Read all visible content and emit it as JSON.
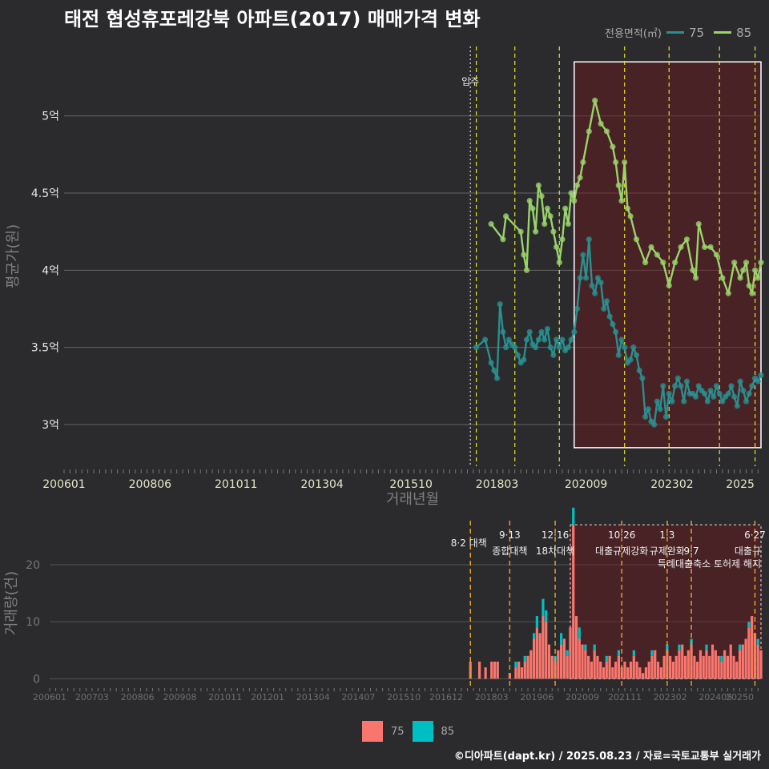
{
  "title": "태전 협성휴포레강북 아파트(2017) 매매가격 변화",
  "legend": {
    "title": "전용면적(㎡)",
    "items": [
      {
        "label": "75",
        "line_color": "#2a8f8f",
        "bar_color": "#f8766d"
      },
      {
        "label": "85",
        "line_color": "#9ad36a",
        "bar_color": "#00bfc4"
      }
    ]
  },
  "footer": "©디아파트(dapt.kr) / 2025.08.23 / 자료=국토교통부 실거래가",
  "chart_data": [
    {
      "type": "line",
      "xlabel": "거래년월",
      "ylabel": "평균가(원)",
      "x_range": [
        "2006-01",
        "2025-08"
      ],
      "ylim": [
        2.73,
        5.45
      ],
      "x_ticks": [
        "200601",
        "200806",
        "201011",
        "201304",
        "201510",
        "201803",
        "202009",
        "202302",
        "2025"
      ],
      "y_ticks": [
        {
          "value": 3.0,
          "label": "3억"
        },
        {
          "value": 3.5,
          "label": "3.5억"
        },
        {
          "value": 4.0,
          "label": "4억"
        },
        {
          "value": 4.5,
          "label": "4.5억"
        },
        {
          "value": 5.0,
          "label": "5억"
        }
      ],
      "annotation": {
        "label": "입주",
        "date": "2017-06"
      },
      "event_dates": [
        "2017-08",
        "2018-09",
        "2019-12",
        "2021-10",
        "2023-01",
        "2024-06",
        "2025-06"
      ],
      "highlight_box": {
        "x": [
          "2020-05",
          "2025-08"
        ],
        "y": [
          2.85,
          5.35
        ]
      },
      "series": [
        {
          "name": "75",
          "x": [
            "2017-08",
            "2017-11",
            "2018-01",
            "2018-02",
            "2018-03",
            "2018-04",
            "2018-05",
            "2018-06",
            "2018-07",
            "2018-08",
            "2018-09",
            "2018-10",
            "2018-11",
            "2018-12",
            "2019-01",
            "2019-02",
            "2019-03",
            "2019-04",
            "2019-05",
            "2019-06",
            "2019-07",
            "2019-08",
            "2019-09",
            "2019-10",
            "2019-11",
            "2019-12",
            "2020-01",
            "2020-02",
            "2020-03",
            "2020-04",
            "2020-05",
            "2020-06",
            "2020-07",
            "2020-08",
            "2020-09",
            "2020-10",
            "2020-11",
            "2020-12",
            "2021-01",
            "2021-02",
            "2021-03",
            "2021-04",
            "2021-05",
            "2021-06",
            "2021-07",
            "2021-08",
            "2021-09",
            "2021-10",
            "2021-11",
            "2021-12",
            "2022-01",
            "2022-02",
            "2022-03",
            "2022-04",
            "2022-05",
            "2022-06",
            "2022-07",
            "2022-08",
            "2022-09",
            "2022-10",
            "2022-11",
            "2022-12",
            "2023-01",
            "2023-02",
            "2023-03",
            "2023-04",
            "2023-05",
            "2023-06",
            "2023-07",
            "2023-08",
            "2023-09",
            "2023-10",
            "2023-11",
            "2023-12",
            "2024-01",
            "2024-02",
            "2024-03",
            "2024-04",
            "2024-05",
            "2024-06",
            "2024-07",
            "2024-08",
            "2024-09",
            "2024-10",
            "2024-11",
            "2024-12",
            "2025-01",
            "2025-02",
            "2025-03",
            "2025-04",
            "2025-05",
            "2025-06",
            "2025-07",
            "2025-08"
          ],
          "y": [
            3.5,
            3.55,
            3.4,
            3.35,
            3.3,
            3.78,
            3.6,
            3.5,
            3.55,
            3.52,
            3.5,
            3.45,
            3.4,
            3.42,
            3.55,
            3.6,
            3.52,
            3.5,
            3.55,
            3.6,
            3.55,
            3.62,
            3.5,
            3.45,
            3.55,
            3.5,
            3.55,
            3.48,
            3.5,
            3.55,
            3.6,
            3.75,
            3.95,
            4.1,
            3.95,
            4.2,
            3.9,
            3.85,
            3.95,
            3.92,
            3.75,
            3.8,
            3.7,
            3.65,
            3.6,
            3.45,
            3.55,
            3.5,
            3.4,
            3.42,
            3.5,
            3.45,
            3.35,
            3.3,
            3.05,
            3.1,
            3.02,
            3.0,
            3.15,
            3.1,
            3.25,
            3.05,
            3.2,
            3.15,
            3.25,
            3.3,
            3.25,
            3.15,
            3.28,
            3.2,
            3.2,
            3.18,
            3.25,
            3.22,
            3.2,
            3.15,
            3.22,
            3.18,
            3.25,
            3.2,
            3.15,
            3.18,
            3.2,
            3.25,
            3.18,
            3.12,
            3.28,
            3.22,
            3.15,
            3.2,
            3.25,
            3.3,
            3.28,
            3.32
          ]
        },
        {
          "name": "85",
          "x": [
            "2018-01",
            "2018-05",
            "2018-06",
            "2018-11",
            "2018-12",
            "2019-01",
            "2019-02",
            "2019-03",
            "2019-04",
            "2019-05",
            "2019-06",
            "2019-07",
            "2019-08",
            "2019-09",
            "2019-10",
            "2019-11",
            "2019-12",
            "2020-01",
            "2020-02",
            "2020-03",
            "2020-04",
            "2020-05",
            "2020-06",
            "2020-07",
            "2020-08",
            "2020-10",
            "2020-12",
            "2021-02",
            "2021-04",
            "2021-06",
            "2021-07",
            "2021-08",
            "2021-09",
            "2021-10",
            "2021-11",
            "2021-12",
            "2022-02",
            "2022-05",
            "2022-07",
            "2022-09",
            "2022-11",
            "2023-01",
            "2023-03",
            "2023-05",
            "2023-07",
            "2023-09",
            "2023-10",
            "2023-11",
            "2024-01",
            "2024-03",
            "2024-05",
            "2024-07",
            "2024-09",
            "2024-11",
            "2025-01",
            "2025-02",
            "2025-03",
            "2025-04",
            "2025-05",
            "2025-06",
            "2025-07",
            "2025-08"
          ],
          "y": [
            4.3,
            4.2,
            4.35,
            4.25,
            4.1,
            4.0,
            4.45,
            4.4,
            4.25,
            4.55,
            4.48,
            4.3,
            4.4,
            4.35,
            4.25,
            4.15,
            4.05,
            4.2,
            4.4,
            4.3,
            4.5,
            4.45,
            4.55,
            4.6,
            4.7,
            4.9,
            5.1,
            4.95,
            4.9,
            4.8,
            4.7,
            4.55,
            4.45,
            4.7,
            4.4,
            4.35,
            4.2,
            4.05,
            4.15,
            4.1,
            4.05,
            3.9,
            4.05,
            4.15,
            4.2,
            4.0,
            3.95,
            4.3,
            4.15,
            4.15,
            4.1,
            3.95,
            3.85,
            4.05,
            3.95,
            4.0,
            4.05,
            3.9,
            3.85,
            4.0,
            3.95,
            4.05
          ]
        }
      ]
    },
    {
      "type": "bar",
      "xlabel": "",
      "ylabel": "거래량(건)",
      "x_range": [
        "2006-01",
        "2025-08"
      ],
      "ylim": [
        -1.5,
        28
      ],
      "x_ticks": [
        "200601",
        "200703",
        "200806",
        "200908",
        "201011",
        "201201",
        "201304",
        "201407",
        "201510",
        "201612",
        "201803",
        "201906",
        "202009",
        "202111",
        "202302",
        "202405",
        "20250"
      ],
      "y_ticks": [
        {
          "value": 0,
          "label": "0"
        },
        {
          "value": 10,
          "label": "10"
        },
        {
          "value": 20,
          "label": "20"
        }
      ],
      "highlight_box": {
        "x": [
          "2020-05",
          "2025-08"
        ],
        "y": [
          0,
          27
        ]
      },
      "events": [
        {
          "date": "2017-08",
          "line1": "",
          "line2": "8·2 대책"
        },
        {
          "date": "2018-09",
          "line1": "9·13",
          "line2": "종합대책"
        },
        {
          "date": "2019-12",
          "line1": "12·16",
          "line2": "18차대책"
        },
        {
          "date": "2021-10",
          "line1": "10·26",
          "line2": "대출규제강화"
        },
        {
          "date": "2023-01",
          "line1": "1·3",
          "line2": "규제완화"
        },
        {
          "date": "2023-09",
          "line1": "",
          "line2": "9·7"
        },
        {
          "date": "2025-06",
          "line1": "6·27",
          "line2": "대출규"
        }
      ],
      "sub_annotation": "특례대출축소 토허제 해지",
      "series": [
        {
          "name": "75",
          "x": [
            "2017-08",
            "2017-11",
            "2018-01",
            "2018-03",
            "2018-04",
            "2018-05",
            "2018-09",
            "2018-11",
            "2018-12",
            "2019-01",
            "2019-02",
            "2019-03",
            "2019-04",
            "2019-05",
            "2019-06",
            "2019-07",
            "2019-08",
            "2019-09",
            "2019-10",
            "2019-11",
            "2019-12",
            "2020-01",
            "2020-02",
            "2020-03",
            "2020-04",
            "2020-05",
            "2020-06",
            "2020-07",
            "2020-08",
            "2020-09",
            "2020-10",
            "2020-11",
            "2020-12",
            "2021-01",
            "2021-02",
            "2021-03",
            "2021-04",
            "2021-05",
            "2021-06",
            "2021-07",
            "2021-08",
            "2021-09",
            "2021-10",
            "2021-11",
            "2021-12",
            "2022-01",
            "2022-02",
            "2022-03",
            "2022-04",
            "2022-05",
            "2022-06",
            "2022-07",
            "2022-08",
            "2022-09",
            "2022-10",
            "2022-11",
            "2022-12",
            "2023-01",
            "2023-02",
            "2023-03",
            "2023-04",
            "2023-05",
            "2023-06",
            "2023-07",
            "2023-08",
            "2023-09",
            "2023-10",
            "2023-11",
            "2023-12",
            "2024-01",
            "2024-02",
            "2024-03",
            "2024-04",
            "2024-05",
            "2024-06",
            "2024-07",
            "2024-08",
            "2024-09",
            "2024-10",
            "2024-11",
            "2024-12",
            "2025-01",
            "2025-02",
            "2025-03",
            "2025-04",
            "2025-05",
            "2025-06",
            "2025-07",
            "2025-08"
          ],
          "values": [
            3,
            3,
            2,
            3,
            3,
            3,
            1,
            2,
            3,
            2,
            3,
            4,
            5,
            7,
            9,
            8,
            11,
            10,
            6,
            4,
            3,
            5,
            6,
            7,
            4,
            9,
            27,
            11,
            7,
            6,
            5,
            4,
            3,
            5,
            4,
            3,
            2,
            3,
            4,
            2,
            3,
            4,
            2,
            3,
            2,
            3,
            4,
            3,
            2,
            1,
            2,
            3,
            4,
            5,
            3,
            2,
            4,
            5,
            4,
            3,
            4,
            5,
            6,
            4,
            5,
            6,
            4,
            3,
            5,
            4,
            5,
            4,
            6,
            5,
            4,
            3,
            5,
            4,
            6,
            4,
            3,
            5,
            6,
            7,
            9,
            11,
            8,
            6,
            5
          ]
        },
        {
          "name": "85",
          "x": [
            "2018-11",
            "2019-02",
            "2019-05",
            "2019-06",
            "2019-08",
            "2019-09",
            "2019-12",
            "2020-02",
            "2020-04",
            "2020-06",
            "2020-08",
            "2020-10",
            "2021-01",
            "2021-05",
            "2021-09",
            "2022-02",
            "2022-08",
            "2023-01",
            "2023-05",
            "2023-09",
            "2024-02",
            "2024-07",
            "2025-01",
            "2025-04",
            "2025-07"
          ],
          "values": [
            1,
            1,
            1,
            2,
            3,
            2,
            1,
            2,
            1,
            3,
            2,
            1,
            1,
            1,
            1,
            1,
            1,
            1,
            1,
            1,
            1,
            1,
            1,
            1,
            1
          ]
        }
      ]
    }
  ]
}
